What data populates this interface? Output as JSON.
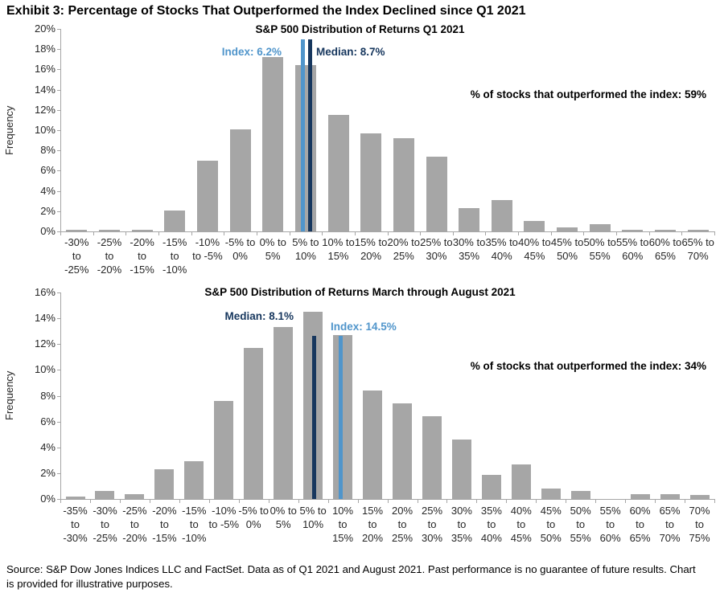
{
  "page_title": "Exhibit 3: Percentage of Stocks That Outperformed the Index Declined since Q1 2021",
  "footer": {
    "text": "Source: S&P Dow Jones Indices LLC and FactSet. Data as of Q1 2021 and August 2021. Past performance is no guarantee of future results. Chart is provided for illustrative purposes."
  },
  "colors": {
    "bar_gray": "#A6A6A6",
    "axis_gray": "#A6A6A6",
    "median_navy": "#17375E",
    "index_blue": "#5095CB",
    "text_black": "#000000"
  },
  "chart_data": [
    {
      "type": "bar",
      "title": "S&P 500 Distribution of Returns Q1 2021",
      "ylabel": "Frequency",
      "ylim": [
        0,
        20
      ],
      "ytick_step": 2,
      "grid": false,
      "categories": [
        "-30% to -25%",
        "-25% to -20%",
        "-20% to -15%",
        "-15% to -10%",
        "-10% to -5%",
        "-5% to 0%",
        "0% to 5%",
        "5% to 10%",
        "10% to 15%",
        "15% to 20%",
        "20% to 25%",
        "25% to 30%",
        "30% to 35%",
        "35% to 40%",
        "40% to 45%",
        "45% to 50%",
        "50% to 55%",
        "55% to 60%",
        "60% to 65%",
        "65% to 70%"
      ],
      "values": [
        0.2,
        0.2,
        0.2,
        2.1,
        7.0,
        10.1,
        17.2,
        16.4,
        11.5,
        9.7,
        9.2,
        7.4,
        2.3,
        3.1,
        1.0,
        0.4,
        0.7,
        0.2,
        0.2,
        0.2
      ],
      "index_value": 6.2,
      "median_value": 8.7,
      "outperformed_pct": 59,
      "annotation": "% of stocks that outperformed the index: 59%",
      "markers": [
        {
          "name": "index",
          "label": "Index: 6.2%",
          "value": 6.2,
          "color": "index_blue"
        },
        {
          "name": "median",
          "label": "Median: 8.7%",
          "value": 8.7,
          "color": "median_navy"
        }
      ]
    },
    {
      "type": "bar",
      "title": "S&P 500 Distribution of Returns March through August 2021",
      "ylabel": "Frequency",
      "ylim": [
        0,
        16
      ],
      "ytick_step": 2,
      "grid": false,
      "categories": [
        "-35% to -30%",
        "-30% to -25%",
        "-25% to -20%",
        "-20% to -15%",
        "-15% to -10%",
        "-10% to -5%",
        "-5% to 0%",
        "0% to 5%",
        "5% to 10%",
        "10% to 15%",
        "15% to 20%",
        "20% to 25%",
        "25% to 30%",
        "30% to 35%",
        "35% to 40%",
        "40% to 45%",
        "45% to 50%",
        "50% to 55%",
        "55% to 60%",
        "60% to 65%",
        "65% to 70%",
        "70% to 75%"
      ],
      "values": [
        0.2,
        0.6,
        0.4,
        2.3,
        2.9,
        7.6,
        11.7,
        13.3,
        14.5,
        12.7,
        8.4,
        7.4,
        6.4,
        4.6,
        1.9,
        2.7,
        0.8,
        0.6,
        0,
        0.4,
        0.4,
        0.3
      ],
      "index_value": 14.5,
      "median_value": 8.1,
      "outperformed_pct": 34,
      "annotation": "% of stocks that outperformed the index: 34%",
      "markers": [
        {
          "name": "median",
          "label": "Median: 8.1%",
          "value": 8.1,
          "color": "median_navy"
        },
        {
          "name": "index",
          "label": "Index: 14.5%",
          "value": 14.5,
          "color": "index_blue"
        }
      ]
    }
  ]
}
